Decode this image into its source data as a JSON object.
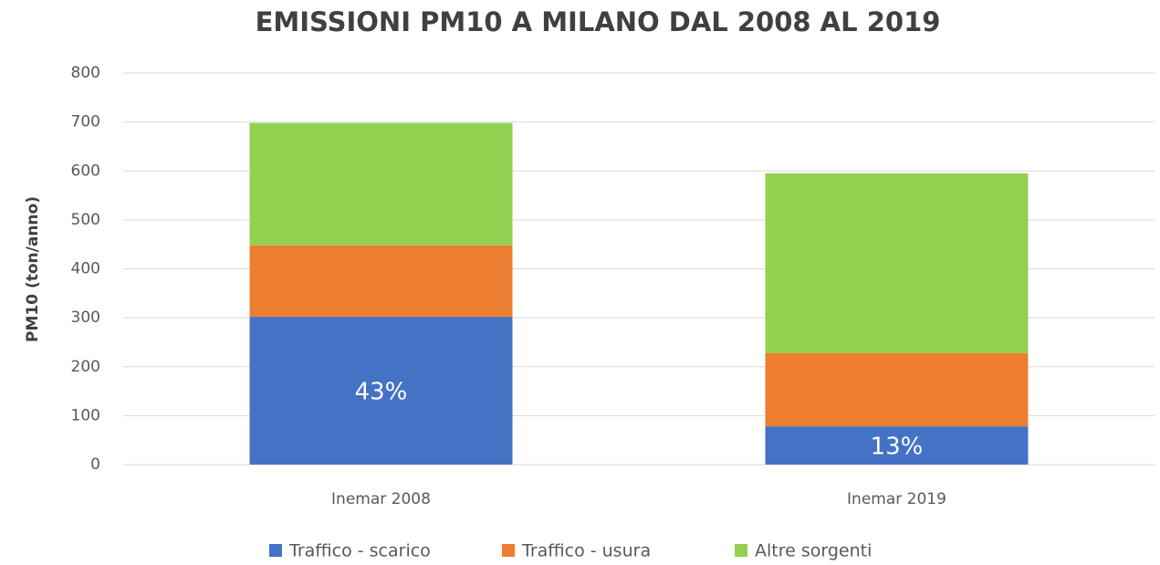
{
  "chart_data": {
    "type": "stacked_bar",
    "title": "EMISSIONI PM10 A MILANO DAL 2008 AL 2019",
    "y_label": "PM10 (ton/anno)",
    "categories": [
      "Inemar 2008",
      "Inemar 2019"
    ],
    "series": [
      {
        "name": "Traffico - scarico",
        "color": "#4472c4",
        "values": [
          302,
          78
        ]
      },
      {
        "name": "Traffico - usura",
        "color": "#ed7d31",
        "values": [
          146,
          150
        ]
      },
      {
        "name": "Altre sorgenti",
        "color": "#92d050",
        "values": [
          250,
          367
        ]
      }
    ],
    "annotations": [
      "43%",
      "13%"
    ],
    "ylim": [
      0,
      800
    ],
    "yticks": [
      0,
      100,
      200,
      300,
      400,
      500,
      600,
      700,
      800
    ],
    "grid": true,
    "legend": "bottom"
  }
}
